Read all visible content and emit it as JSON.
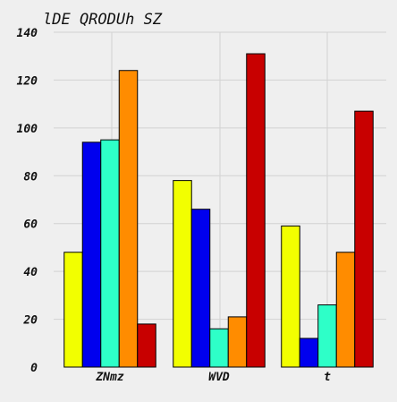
{
  "chart_data": {
    "type": "bar",
    "title": "lDE QRODUh SZ",
    "xlabel": "",
    "ylabel": "",
    "categories": [
      "ZNmz",
      "WVD",
      "t"
    ],
    "series": [
      {
        "values": [
          48,
          78,
          59
        ],
        "color": "#f2ff00"
      },
      {
        "values": [
          94,
          66,
          12
        ],
        "color": "#0000ee"
      },
      {
        "values": [
          95,
          16,
          26
        ],
        "color": "#2effc8"
      },
      {
        "values": [
          124,
          21,
          48
        ],
        "color": "#ff8c00"
      },
      {
        "values": [
          18,
          131,
          107
        ],
        "color": "#c80000"
      }
    ],
    "ylim": [
      0,
      140
    ],
    "yticks": [
      0,
      20,
      40,
      60,
      80,
      100,
      120,
      140
    ],
    "grid": true
  }
}
